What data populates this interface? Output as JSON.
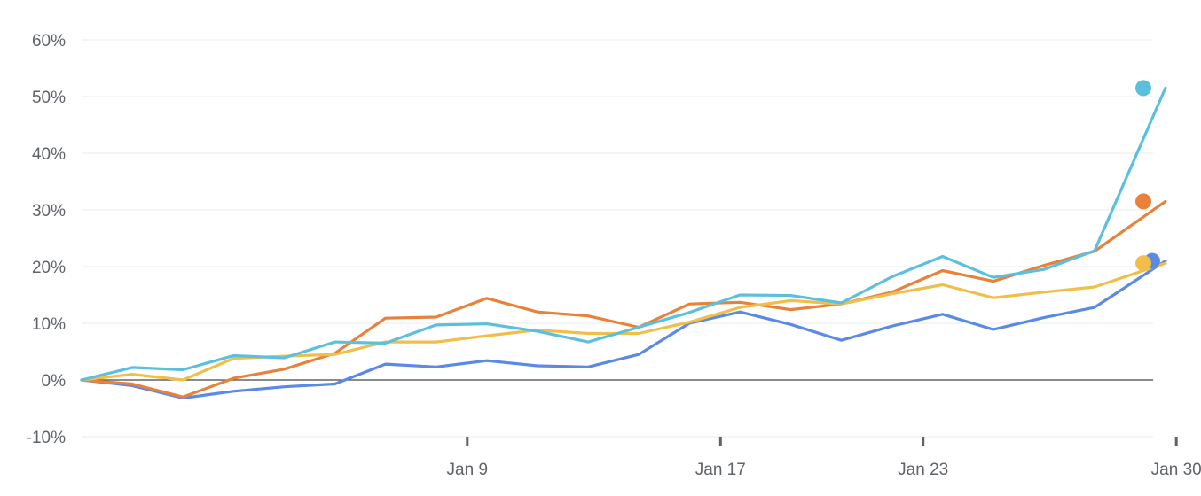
{
  "chart_data": {
    "type": "line",
    "title": "",
    "xlabel": "",
    "ylabel": "",
    "ylim": [
      -10,
      60
    ],
    "y_ticks": [
      "60%",
      "50%",
      "40%",
      "30%",
      "20%",
      "10%",
      "0%",
      "-10%"
    ],
    "y_tick_values": [
      60,
      50,
      40,
      30,
      20,
      10,
      0,
      -10
    ],
    "x_ticks": [
      "Jan 9",
      "Jan 17",
      "Jan 23",
      "Jan 30"
    ],
    "x_tick_positions": [
      8,
      13,
      17,
      22
    ],
    "x_range": [
      0,
      21.4
    ],
    "grid": true,
    "legend": "none",
    "series": [
      {
        "color": "#5b8ae6",
        "values": [
          0,
          -1,
          -3.2,
          -2,
          -1.2,
          -0.7,
          2.8,
          2.3,
          3.4,
          2.5,
          2.3,
          4.5,
          10,
          12,
          9.8,
          7,
          9.5,
          11.6,
          8.9,
          11,
          12.8,
          21
        ]
      },
      {
        "color": "#e8823a",
        "values": [
          0,
          -0.7,
          -3,
          0.3,
          1.9,
          4.7,
          10.9,
          11.1,
          14.4,
          12,
          11.3,
          9.3,
          13.4,
          13.7,
          12.4,
          13.4,
          15.5,
          19.3,
          17.4,
          20.2,
          22.7,
          31.5
        ]
      },
      {
        "color": "#f2be4a",
        "values": [
          0,
          1,
          0,
          3.8,
          4.2,
          4.5,
          6.7,
          6.7,
          7.8,
          8.8,
          8.2,
          8.2,
          10.2,
          12.8,
          14,
          13.4,
          15.2,
          16.8,
          14.5,
          15.5,
          16.4,
          20.6
        ]
      },
      {
        "color": "#5bc0de",
        "values": [
          0,
          2.2,
          1.8,
          4.3,
          3.9,
          6.7,
          6.5,
          9.7,
          9.9,
          8.6,
          6.7,
          9.3,
          11.9,
          15,
          14.9,
          13.6,
          18.2,
          21.8,
          18.1,
          19.5,
          22.8,
          51.5
        ]
      }
    ]
  }
}
